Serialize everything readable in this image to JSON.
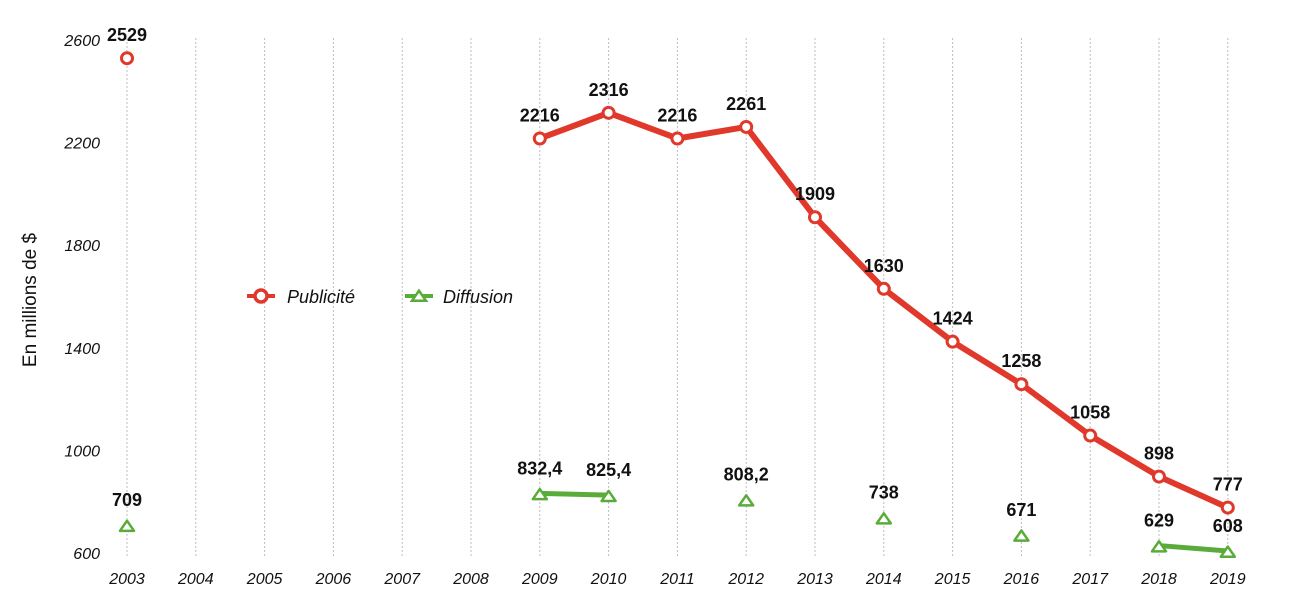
{
  "chart_data": {
    "type": "line",
    "title": "",
    "xlabel": "",
    "ylabel": "En millions de $",
    "categories": [
      "2003",
      "2004",
      "2005",
      "2006",
      "2007",
      "2008",
      "2009",
      "2010",
      "2011",
      "2012",
      "2013",
      "2014",
      "2015",
      "2016",
      "2017",
      "2018",
      "2019"
    ],
    "ylim": [
      600,
      2600
    ],
    "yticks": [
      600,
      1000,
      1400,
      1800,
      2200,
      2600
    ],
    "grid": "vertical dashed",
    "legend_position": "center-left",
    "series": [
      {
        "name": "Publicité",
        "color": "#e0392b",
        "marker": "circle",
        "values": [
          2529,
          null,
          null,
          null,
          null,
          null,
          2216,
          2316,
          2216,
          2261,
          1909,
          1630,
          1424,
          1258,
          1058,
          898,
          777
        ],
        "labels": [
          "2529",
          "",
          "",
          "",
          "",
          "",
          "2216",
          "2316",
          "2216",
          "2261",
          "1909",
          "1630",
          "1424",
          "1258",
          "1058",
          "898",
          "777"
        ]
      },
      {
        "name": "Diffusion",
        "color": "#5aac3a",
        "marker": "triangle",
        "values": [
          709,
          null,
          null,
          null,
          null,
          null,
          832.4,
          825.4,
          null,
          808.2,
          null,
          738,
          null,
          671,
          null,
          629,
          608
        ],
        "labels": [
          "709",
          "",
          "",
          "",
          "",
          "",
          "832,4",
          "825,4",
          "",
          "808,2",
          "",
          "738",
          "",
          "671",
          "",
          "629",
          "608"
        ]
      }
    ]
  }
}
